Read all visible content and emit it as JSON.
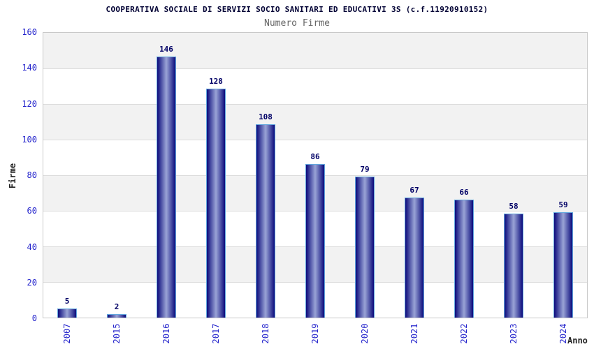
{
  "chart_data": {
    "type": "bar",
    "title": "COOPERATIVA SOCIALE DI SERVIZI SOCIO SANITARI ED EDUCATIVI 3S (c.f.11920910152)",
    "subtitle": "Numero Firme",
    "xlabel": "Anno",
    "ylabel": "Firme",
    "categories": [
      "2007",
      "2015",
      "2016",
      "2017",
      "2018",
      "2019",
      "2020",
      "2021",
      "2022",
      "2023",
      "2024"
    ],
    "values": [
      5,
      2,
      146,
      128,
      108,
      86,
      79,
      67,
      66,
      58,
      59
    ],
    "ylim": [
      0,
      160
    ],
    "yticks": [
      0,
      20,
      40,
      60,
      80,
      100,
      120,
      140,
      160
    ],
    "grid": true,
    "legend": "none",
    "colors": {
      "bar_edge": "#0b0b7c",
      "bar_center": "#9aa4d6",
      "bar_border": "#63a8de",
      "band_gray": "#f2f2f2",
      "band_white": "#ffffff",
      "gridline": "#dcdcdc",
      "tick_label": "#2424cc",
      "value_label": "#000066",
      "title": "#000033",
      "subtitle": "#666666",
      "axis_label": "#222222"
    }
  }
}
